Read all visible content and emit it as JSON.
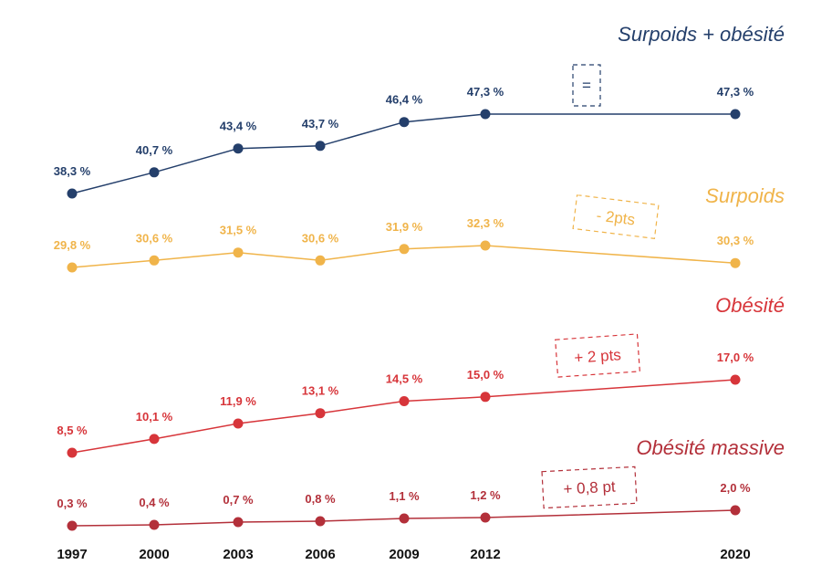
{
  "chart_data": {
    "type": "line",
    "x": [
      1997,
      2000,
      2003,
      2006,
      2009,
      2012,
      2020
    ],
    "x_tick_labels": [
      "1997",
      "2000",
      "2003",
      "2006",
      "2009",
      "2012",
      "2020"
    ],
    "grid": false,
    "legend": "none",
    "series": [
      {
        "name": "Surpoids + obésité",
        "color": "#243f6b",
        "values": [
          38.3,
          40.7,
          43.4,
          43.7,
          46.4,
          47.3,
          47.3
        ],
        "labels": [
          "38,3 %",
          "40,7 %",
          "43,4 %",
          "43,7 %",
          "46,4 %",
          "47,3 %",
          "47,3 %"
        ],
        "annotation": "="
      },
      {
        "name": "Surpoids",
        "color": "#f0b44a",
        "values": [
          29.8,
          30.6,
          31.5,
          30.6,
          31.9,
          32.3,
          30.3
        ],
        "labels": [
          "29,8 %",
          "30,6 %",
          "31,5 %",
          "30,6 %",
          "31,9 %",
          "32,3 %",
          "30,3 %"
        ],
        "annotation": "- 2pts"
      },
      {
        "name": "Obésité",
        "color": "#d7353a",
        "values": [
          8.5,
          10.1,
          11.9,
          13.1,
          14.5,
          15.0,
          17.0
        ],
        "labels": [
          "8,5 %",
          "10,1 %",
          "11,9 %",
          "13,1 %",
          "14,5 %",
          "15,0 %",
          "17,0 %"
        ],
        "annotation": "+ 2 pts"
      },
      {
        "name": "Obésité massive",
        "color": "#b3303a",
        "values": [
          0.3,
          0.4,
          0.7,
          0.8,
          1.1,
          1.2,
          2.0
        ],
        "labels": [
          "0,3 %",
          "0,4 %",
          "0,7 %",
          "0,8 %",
          "1,1 %",
          "1,2 %",
          "2,0 %"
        ],
        "annotation": "+ 0,8 pt"
      }
    ]
  }
}
